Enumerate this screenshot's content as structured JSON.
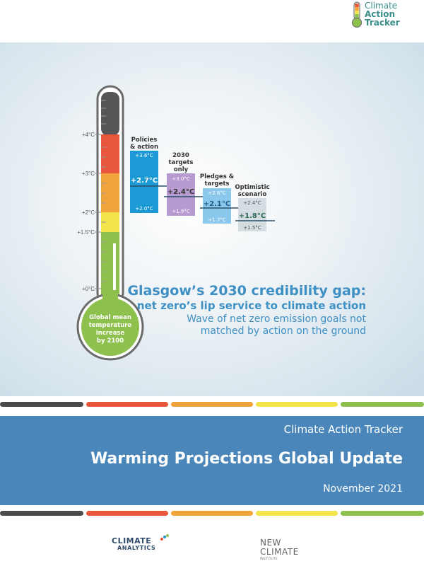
{
  "logo": {
    "line1": "Climate",
    "line2": "Action",
    "line3": "Tracker"
  },
  "thermometer": {
    "scale_labels": [
      "+4°C",
      "+3°C",
      "+2°C",
      "+1.5°C",
      "+0°C"
    ],
    "bulb_text": [
      "Global mean",
      "temperature",
      "increase",
      "by 2100"
    ]
  },
  "scenarios": [
    {
      "title": [
        "Policies",
        "& action"
      ],
      "high": "+3.6°C",
      "central": "+2.7°C",
      "low": "+2.0°C"
    },
    {
      "title": [
        "2030",
        "targets",
        "only"
      ],
      "high": "+3.0°C",
      "central": "+2.4°C",
      "low": "+1.9°C"
    },
    {
      "title": [
        "Pledges &",
        "targets"
      ],
      "high": "+2.6°C",
      "central": "+2.1°C",
      "low": "+1.7°C"
    },
    {
      "title": [
        "Optimistic",
        "scenario"
      ],
      "high": "+2.4°C",
      "central": "+1.8°C",
      "low": "+1.5°C"
    }
  ],
  "headline": {
    "line1": "Glasgow’s 2030 credibility gap:",
    "line2": "net zero’s lip service to climate action",
    "sub1": "Wave of net zero emission goals not",
    "sub2": "matched by action on the ground"
  },
  "colors": {
    "dark": "#4a4a4a",
    "red": "#e8563b",
    "orange": "#f0a33a",
    "yellow": "#f2e44a",
    "green": "#8dc04c",
    "blue": "#1c9ad6",
    "purple": "#b79ad0",
    "light_blue": "#8cc8ec",
    "grey": "#d4dde2",
    "banner": "#4a86b9",
    "headline": "#3d8fc4"
  },
  "banner": {
    "org": "Climate Action Tracker",
    "title": "Warming Projections Global Update",
    "date": "November 2021"
  },
  "footer": {
    "climate_analytics": [
      "CLIMATE",
      "ANALYTICS"
    ],
    "new_climate": [
      "NEW",
      "CLIMATE",
      "INSTITUTE"
    ]
  }
}
